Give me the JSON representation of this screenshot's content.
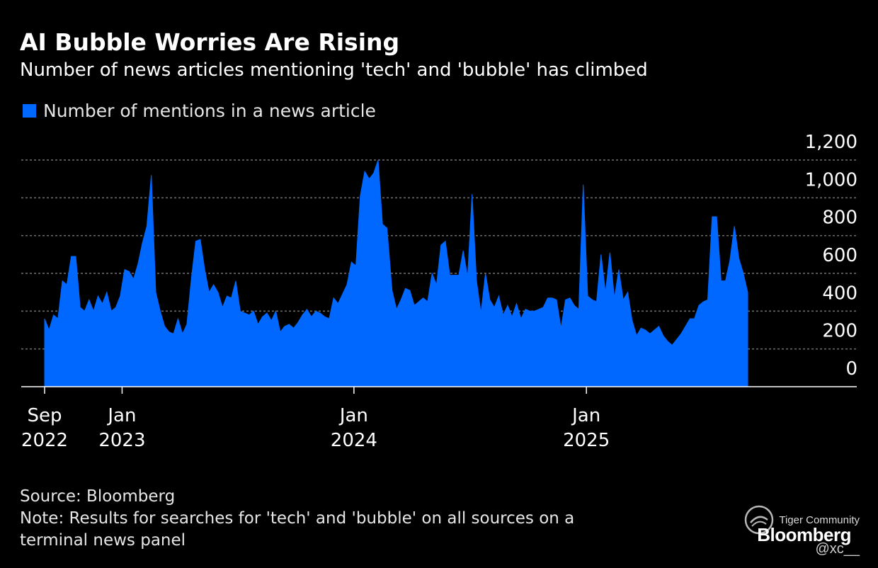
{
  "header": {
    "title": "AI Bubble Worries Are Rising",
    "subtitle": "Number of news articles mentioning 'tech' and 'bubble' has climbed"
  },
  "colors": {
    "background": "#000000",
    "series": "#0068ff",
    "grid": "#6a6a6a",
    "text": "#ffffff"
  },
  "chart_data": {
    "type": "area",
    "title": "AI Bubble Worries Are Rising",
    "subtitle": "Number of news articles mentioning 'tech' and 'bubble' has climbed",
    "xlabel": "",
    "ylabel": "",
    "ylim": [
      0,
      1200
    ],
    "yticks": [
      0,
      200,
      400,
      600,
      800,
      1000,
      1200
    ],
    "ytick_labels": [
      "0",
      "200",
      "400",
      "600",
      "800",
      "1,000",
      "1,200"
    ],
    "xlim": [
      "2022-09-01",
      "2025-10-31"
    ],
    "xticks": [
      {
        "date": "2022-09-01",
        "line1": "Sep",
        "line2": "2022"
      },
      {
        "date": "2023-01-01",
        "line1": "Jan",
        "line2": "2023"
      },
      {
        "date": "2024-01-01",
        "line1": "Jan",
        "line2": "2024"
      },
      {
        "date": "2025-01-01",
        "line1": "Jan",
        "line2": "2025"
      }
    ],
    "grid": true,
    "legend_position": "top-left",
    "series": [
      {
        "name": "Number of mentions in a news article",
        "points": [
          [
            "2022-09-01",
            360
          ],
          [
            "2022-09-08",
            300
          ],
          [
            "2022-09-15",
            380
          ],
          [
            "2022-09-22",
            360
          ],
          [
            "2022-09-29",
            560
          ],
          [
            "2022-10-06",
            540
          ],
          [
            "2022-10-13",
            690
          ],
          [
            "2022-10-20",
            690
          ],
          [
            "2022-10-27",
            420
          ],
          [
            "2022-11-03",
            400
          ],
          [
            "2022-11-10",
            460
          ],
          [
            "2022-11-17",
            400
          ],
          [
            "2022-11-24",
            480
          ],
          [
            "2022-12-01",
            440
          ],
          [
            "2022-12-08",
            500
          ],
          [
            "2022-12-15",
            400
          ],
          [
            "2022-12-22",
            420
          ],
          [
            "2022-12-29",
            480
          ],
          [
            "2023-01-05",
            620
          ],
          [
            "2023-01-12",
            610
          ],
          [
            "2023-01-19",
            570
          ],
          [
            "2023-01-26",
            650
          ],
          [
            "2023-02-02",
            760
          ],
          [
            "2023-02-09",
            850
          ],
          [
            "2023-02-16",
            1120
          ],
          [
            "2023-02-23",
            500
          ],
          [
            "2023-03-02",
            400
          ],
          [
            "2023-03-09",
            320
          ],
          [
            "2023-03-16",
            290
          ],
          [
            "2023-03-23",
            280
          ],
          [
            "2023-03-30",
            360
          ],
          [
            "2023-04-06",
            280
          ],
          [
            "2023-04-13",
            330
          ],
          [
            "2023-04-20",
            570
          ],
          [
            "2023-04-27",
            770
          ],
          [
            "2023-05-04",
            780
          ],
          [
            "2023-05-11",
            620
          ],
          [
            "2023-05-18",
            500
          ],
          [
            "2023-05-25",
            540
          ],
          [
            "2023-06-01",
            500
          ],
          [
            "2023-06-08",
            420
          ],
          [
            "2023-06-15",
            480
          ],
          [
            "2023-06-22",
            470
          ],
          [
            "2023-06-29",
            560
          ],
          [
            "2023-07-06",
            400
          ],
          [
            "2023-07-13",
            390
          ],
          [
            "2023-07-20",
            380
          ],
          [
            "2023-07-27",
            400
          ],
          [
            "2023-08-03",
            330
          ],
          [
            "2023-08-10",
            370
          ],
          [
            "2023-08-17",
            390
          ],
          [
            "2023-08-24",
            350
          ],
          [
            "2023-08-31",
            400
          ],
          [
            "2023-09-07",
            290
          ],
          [
            "2023-09-14",
            320
          ],
          [
            "2023-09-21",
            330
          ],
          [
            "2023-09-28",
            310
          ],
          [
            "2023-10-05",
            340
          ],
          [
            "2023-10-12",
            380
          ],
          [
            "2023-10-19",
            410
          ],
          [
            "2023-10-26",
            370
          ],
          [
            "2023-11-02",
            400
          ],
          [
            "2023-11-09",
            390
          ],
          [
            "2023-11-16",
            370
          ],
          [
            "2023-11-23",
            360
          ],
          [
            "2023-11-30",
            470
          ],
          [
            "2023-12-07",
            440
          ],
          [
            "2023-12-14",
            490
          ],
          [
            "2023-12-21",
            540
          ],
          [
            "2023-12-28",
            660
          ],
          [
            "2024-01-04",
            640
          ],
          [
            "2024-01-11",
            1010
          ],
          [
            "2024-01-18",
            1140
          ],
          [
            "2024-01-25",
            1100
          ],
          [
            "2024-02-01",
            1130
          ],
          [
            "2024-02-08",
            1200
          ],
          [
            "2024-02-15",
            860
          ],
          [
            "2024-02-22",
            840
          ],
          [
            "2024-03-01",
            510
          ],
          [
            "2024-03-08",
            410
          ],
          [
            "2024-03-15",
            460
          ],
          [
            "2024-03-22",
            520
          ],
          [
            "2024-03-29",
            510
          ],
          [
            "2024-04-05",
            430
          ],
          [
            "2024-04-12",
            450
          ],
          [
            "2024-04-19",
            470
          ],
          [
            "2024-04-26",
            450
          ],
          [
            "2024-05-03",
            600
          ],
          [
            "2024-05-10",
            540
          ],
          [
            "2024-05-17",
            750
          ],
          [
            "2024-05-24",
            770
          ],
          [
            "2024-05-31",
            590
          ],
          [
            "2024-06-07",
            590
          ],
          [
            "2024-06-14",
            590
          ],
          [
            "2024-06-21",
            720
          ],
          [
            "2024-06-28",
            580
          ],
          [
            "2024-07-05",
            1020
          ],
          [
            "2024-07-12",
            560
          ],
          [
            "2024-07-19",
            390
          ],
          [
            "2024-07-26",
            600
          ],
          [
            "2024-08-02",
            460
          ],
          [
            "2024-08-09",
            420
          ],
          [
            "2024-08-16",
            480
          ],
          [
            "2024-08-23",
            380
          ],
          [
            "2024-08-30",
            430
          ],
          [
            "2024-09-06",
            370
          ],
          [
            "2024-09-13",
            440
          ],
          [
            "2024-09-20",
            360
          ],
          [
            "2024-09-27",
            410
          ],
          [
            "2024-10-04",
            400
          ],
          [
            "2024-10-11",
            400
          ],
          [
            "2024-10-18",
            410
          ],
          [
            "2024-10-25",
            420
          ],
          [
            "2024-11-01",
            470
          ],
          [
            "2024-11-08",
            470
          ],
          [
            "2024-11-15",
            460
          ],
          [
            "2024-11-22",
            310
          ],
          [
            "2024-11-29",
            460
          ],
          [
            "2024-12-06",
            470
          ],
          [
            "2024-12-13",
            430
          ],
          [
            "2024-12-20",
            410
          ],
          [
            "2024-12-27",
            1070
          ],
          [
            "2025-01-03",
            480
          ],
          [
            "2025-01-10",
            460
          ],
          [
            "2025-01-17",
            450
          ],
          [
            "2025-01-24",
            700
          ],
          [
            "2025-01-31",
            500
          ],
          [
            "2025-02-07",
            710
          ],
          [
            "2025-02-14",
            470
          ],
          [
            "2025-02-21",
            620
          ],
          [
            "2025-02-28",
            460
          ],
          [
            "2025-03-07",
            500
          ],
          [
            "2025-03-14",
            350
          ],
          [
            "2025-03-21",
            270
          ],
          [
            "2025-03-28",
            310
          ],
          [
            "2025-04-04",
            300
          ],
          [
            "2025-04-11",
            280
          ],
          [
            "2025-04-18",
            300
          ],
          [
            "2025-04-25",
            320
          ],
          [
            "2025-05-02",
            270
          ],
          [
            "2025-05-09",
            240
          ],
          [
            "2025-05-16",
            220
          ],
          [
            "2025-05-23",
            250
          ],
          [
            "2025-05-30",
            280
          ],
          [
            "2025-06-06",
            320
          ],
          [
            "2025-06-13",
            360
          ],
          [
            "2025-06-20",
            360
          ],
          [
            "2025-06-27",
            430
          ],
          [
            "2025-07-04",
            450
          ],
          [
            "2025-07-11",
            460
          ],
          [
            "2025-07-18",
            900
          ],
          [
            "2025-07-25",
            900
          ],
          [
            "2025-08-01",
            560
          ],
          [
            "2025-08-08",
            560
          ],
          [
            "2025-08-15",
            670
          ],
          [
            "2025-08-22",
            850
          ],
          [
            "2025-08-29",
            680
          ],
          [
            "2025-09-05",
            600
          ],
          [
            "2025-09-12",
            500
          ]
        ]
      }
    ]
  },
  "legend": {
    "label": "Number of mentions in a news article"
  },
  "footer": {
    "source": "Source: Bloomberg",
    "note_line1": "Note: Results for searches for 'tech' and 'bubble' on all sources on a",
    "note_line2": "terminal news panel"
  },
  "brand": {
    "name": "Bloomberg"
  },
  "watermark": {
    "text": "Tiger Community",
    "handle": "@xc__"
  }
}
